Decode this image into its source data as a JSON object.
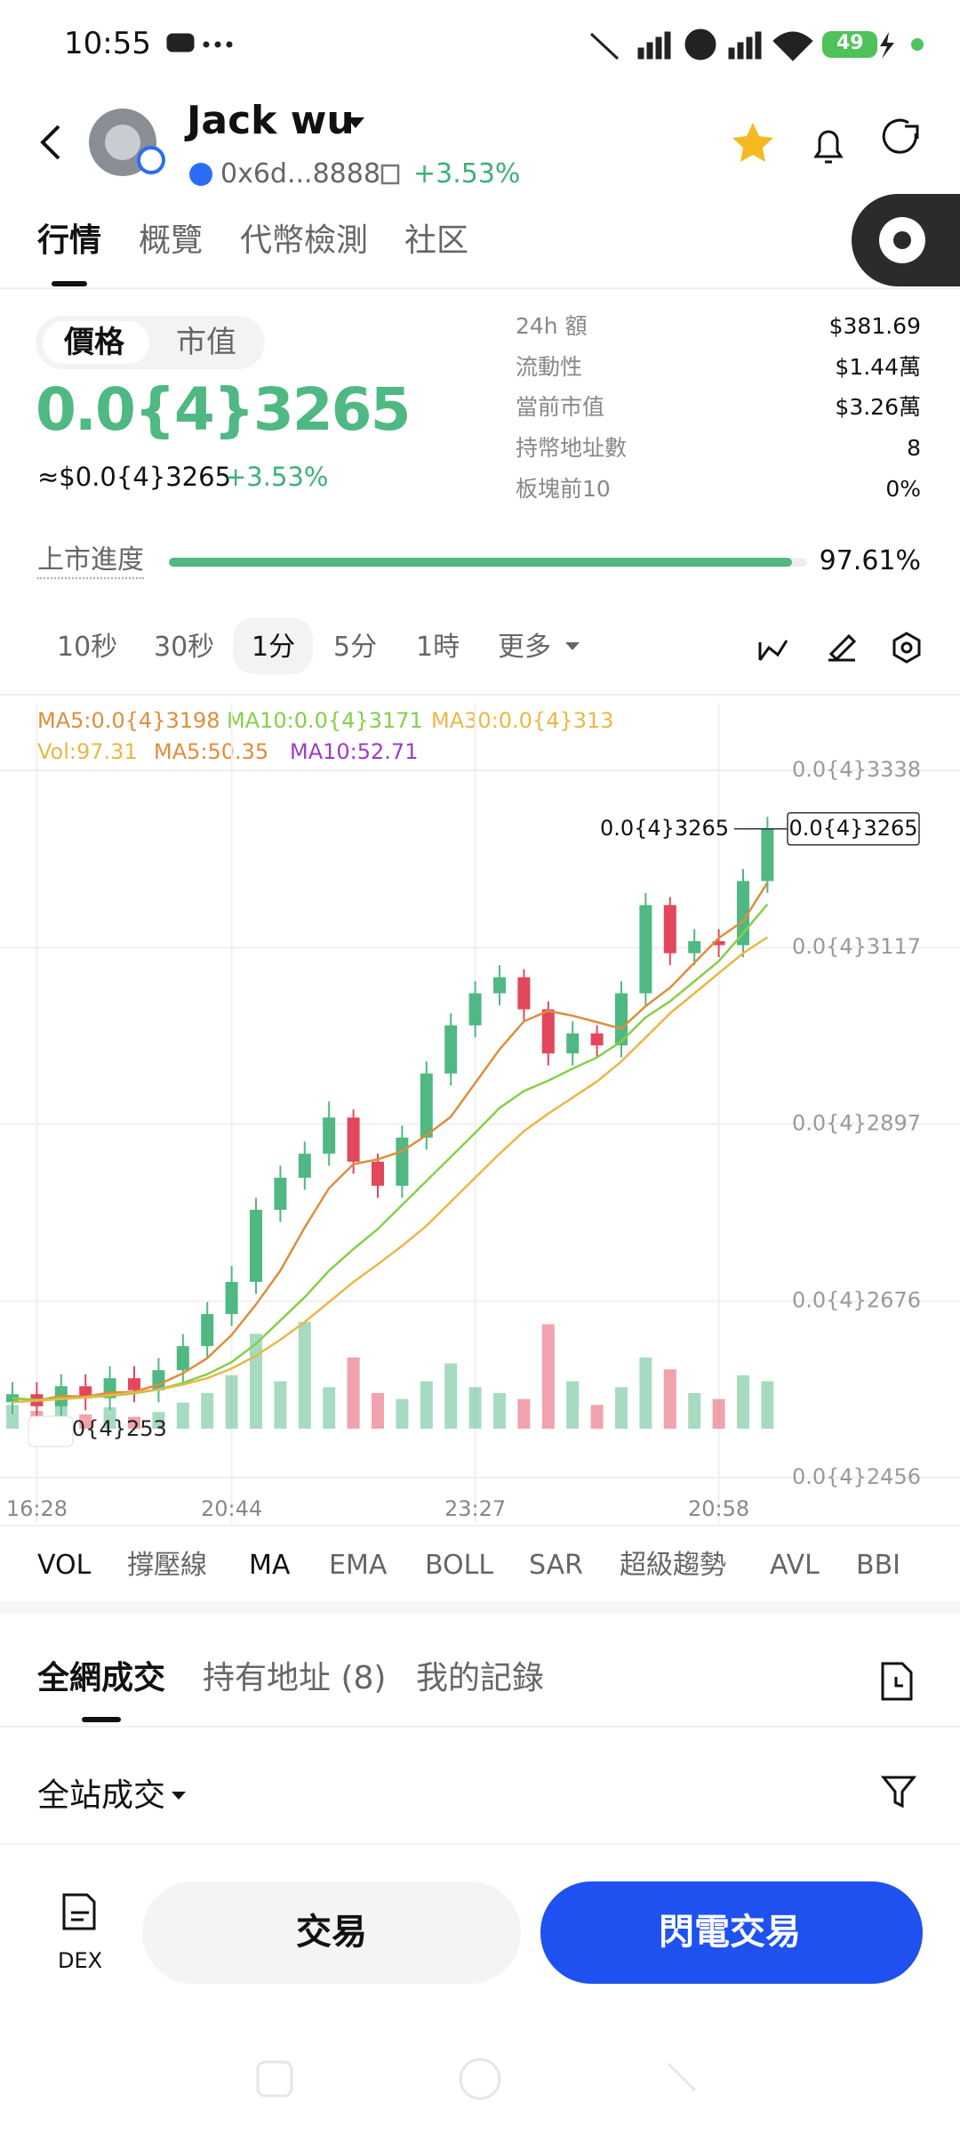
{
  "status_bar": {
    "time": "10:55",
    "battery": "49"
  },
  "header": {
    "name": "Jack wu",
    "address": "0x6d...8888",
    "change": "+3.53%"
  },
  "tabs": [
    "行情",
    "概覽",
    "代幣檢測",
    "社区"
  ],
  "price_panel": {
    "toggle": [
      "價格",
      "市值"
    ],
    "price": "0.0{4}3265",
    "approx": "≈$0.0{4}3265",
    "change": "+3.53%",
    "stats": [
      {
        "label": "24h 額",
        "value": "$381.69"
      },
      {
        "label": "流動性",
        "value": "$1.44萬"
      },
      {
        "label": "當前市值",
        "value": "$3.26萬"
      },
      {
        "label": "持幣地址數",
        "value": "8"
      },
      {
        "label": "板塊前10",
        "value": "0%"
      }
    ],
    "progress_label": "上市進度",
    "progress": {
      "value": 97.61,
      "label": "97.61%"
    },
    "progress_color": "#4fb883"
  },
  "timeframes": [
    "10秒",
    "30秒",
    "1分",
    "5分",
    "1時",
    "更多"
  ],
  "chart_data": {
    "type": "candlestick",
    "categories": [
      null,
      "16:28",
      null,
      null,
      null,
      null,
      null,
      null,
      null,
      "20:44",
      null,
      null,
      null,
      null,
      null,
      null,
      null,
      null,
      null,
      "23:27",
      null,
      null,
      null,
      null,
      null,
      null,
      null,
      null,
      null,
      "20:58",
      null,
      null
    ],
    "open": [
      2.55e-05,
      2.56e-05,
      2.545e-05,
      2.57e-05,
      2.555e-05,
      2.58e-05,
      2.565e-05,
      2.59e-05,
      2.62e-05,
      2.66e-05,
      2.7e-05,
      2.79e-05,
      2.83e-05,
      2.86e-05,
      2.905e-05,
      2.85e-05,
      2.82e-05,
      2.88e-05,
      2.96e-05,
      3.02e-05,
      3.06e-05,
      3.08e-05,
      3.04e-05,
      2.985e-05,
      3.01e-05,
      2.995e-05,
      3.06e-05,
      3.17e-05,
      3.11e-05,
      3.125e-05,
      3.12e-05,
      3.2e-05
    ],
    "high": [
      2.575e-05,
      2.575e-05,
      2.585e-05,
      2.585e-05,
      2.595e-05,
      2.595e-05,
      2.605e-05,
      2.635e-05,
      2.675e-05,
      2.72e-05,
      2.805e-05,
      2.845e-05,
      2.875e-05,
      2.925e-05,
      2.915e-05,
      2.86e-05,
      2.895e-05,
      2.975e-05,
      3.035e-05,
      3.075e-05,
      3.095e-05,
      3.09e-05,
      3.05e-05,
      3.025e-05,
      3.02e-05,
      3.075e-05,
      3.185e-05,
      3.18e-05,
      3.14e-05,
      3.14e-05,
      3.215e-05,
      3.28e-05
    ],
    "low": [
      2.535e-05,
      2.53e-05,
      2.53e-05,
      2.54e-05,
      2.54e-05,
      2.55e-05,
      2.55e-05,
      2.575e-05,
      2.605e-05,
      2.645e-05,
      2.685e-05,
      2.775e-05,
      2.815e-05,
      2.845e-05,
      2.835e-05,
      2.805e-05,
      2.805e-05,
      2.865e-05,
      2.945e-05,
      3.005e-05,
      3.045e-05,
      3.025e-05,
      2.97e-05,
      2.97e-05,
      2.98e-05,
      2.98e-05,
      3.045e-05,
      3.095e-05,
      3.095e-05,
      3.105e-05,
      3.105e-05,
      3.185e-05
    ],
    "close": [
      2.56e-05,
      2.545e-05,
      2.57e-05,
      2.555e-05,
      2.58e-05,
      2.565e-05,
      2.59e-05,
      2.62e-05,
      2.66e-05,
      2.7e-05,
      2.79e-05,
      2.83e-05,
      2.86e-05,
      2.905e-05,
      2.85e-05,
      2.82e-05,
      2.88e-05,
      2.96e-05,
      3.02e-05,
      3.06e-05,
      3.08e-05,
      3.04e-05,
      2.985e-05,
      3.01e-05,
      2.995e-05,
      3.06e-05,
      3.17e-05,
      3.11e-05,
      3.125e-05,
      3.12e-05,
      3.2e-05,
      3.265e-05
    ],
    "up_color": "#4fb883",
    "down_color": "#e2475c",
    "series": [
      {
        "name": "MA5:0.0{4}3198",
        "color": "#dd8e3c",
        "values": [
          2.555e-05,
          2.552e-05,
          2.558e-05,
          2.557e-05,
          2.562e-05,
          2.563e-05,
          2.572e-05,
          2.586e-05,
          2.605e-05,
          2.634e-05,
          2.672e-05,
          2.714e-05,
          2.768e-05,
          2.817e-05,
          2.847e-05,
          2.853e-05,
          2.863e-05,
          2.883e-05,
          2.906e-05,
          2.948e-05,
          2.99e-05,
          3.025e-05,
          3.038e-05,
          3.032e-05,
          3.024e-05,
          3.016e-05,
          3.044e-05,
          3.067e-05,
          3.098e-05,
          3.129e-05,
          3.15e-05,
          3.198e-05
        ]
      },
      {
        "name": "MA10:0.0{4}3171",
        "color": "#86cf4a",
        "values": [
          2.555e-05,
          2.553e-05,
          2.555e-05,
          2.556e-05,
          2.558e-05,
          2.561e-05,
          2.566e-05,
          2.574e-05,
          2.585e-05,
          2.6e-05,
          2.623e-05,
          2.652e-05,
          2.681e-05,
          2.714e-05,
          2.741e-05,
          2.766e-05,
          2.796e-05,
          2.826e-05,
          2.856e-05,
          2.886e-05,
          2.917e-05,
          2.938e-05,
          2.951e-05,
          2.966e-05,
          2.98e-05,
          3e-05,
          3.03e-05,
          3.05e-05,
          3.075e-05,
          3.1e-05,
          3.135e-05,
          3.171e-05
        ]
      },
      {
        "name": "MA30:0.0{4}313",
        "color": "#e8b847",
        "values": [
          2.55e-05,
          2.552e-05,
          2.554e-05,
          2.556e-05,
          2.559e-05,
          2.562e-05,
          2.566e-05,
          2.572e-05,
          2.58e-05,
          2.592e-05,
          2.608e-05,
          2.628e-05,
          2.65e-05,
          2.675e-05,
          2.7e-05,
          2.722e-05,
          2.745e-05,
          2.77e-05,
          2.8e-05,
          2.83e-05,
          2.86e-05,
          2.888e-05,
          2.91e-05,
          2.93e-05,
          2.95e-05,
          2.975e-05,
          3.005e-05,
          3.035e-05,
          3.06e-05,
          3.085e-05,
          3.11e-05,
          3.13e-05
        ]
      }
    ],
    "volume": {
      "name": "Vol:97.31",
      "color": "#e8b847",
      "values": [
        20,
        15,
        25,
        12,
        18,
        10,
        14,
        22,
        30,
        45,
        80,
        40,
        90,
        35,
        60,
        30,
        25,
        40,
        55,
        35,
        30,
        25,
        88,
        40,
        20,
        35,
        60,
        50,
        30,
        25,
        45,
        40
      ]
    },
    "volume_ma": [
      {
        "name": "MA5:50.35",
        "color": "#dd8e3c"
      },
      {
        "name": "MA10:52.71",
        "color": "#9a3ec8"
      }
    ],
    "ylim": [
      2.456e-05,
      3.338e-05
    ],
    "yticks": [
      {
        "value": 3.338e-05,
        "label": "0.0{4}3338"
      },
      {
        "value": 3.117e-05,
        "label": "0.0{4}3117"
      },
      {
        "value": 2.897e-05,
        "label": "0.0{4}2897"
      },
      {
        "value": 2.676e-05,
        "label": "0.0{4}2676"
      },
      {
        "value": 2.456e-05,
        "label": "0.0{4}2456"
      }
    ],
    "grid": true,
    "last_price_label": "0.0{4}3265",
    "low_label": "0.0{4}253"
  },
  "indicators": [
    "VOL",
    "撐壓線",
    "MA",
    "EMA",
    "BOLL",
    "SAR",
    "超級趨勢",
    "AVL",
    "BBI"
  ],
  "trade_tabs": [
    "全網成交",
    "持有地址 (8)",
    "我的記錄"
  ],
  "trade_filter": "全站成交",
  "bottom_bar": {
    "dex": "DEX",
    "trade": "交易",
    "flash_trade": "閃電交易"
  }
}
